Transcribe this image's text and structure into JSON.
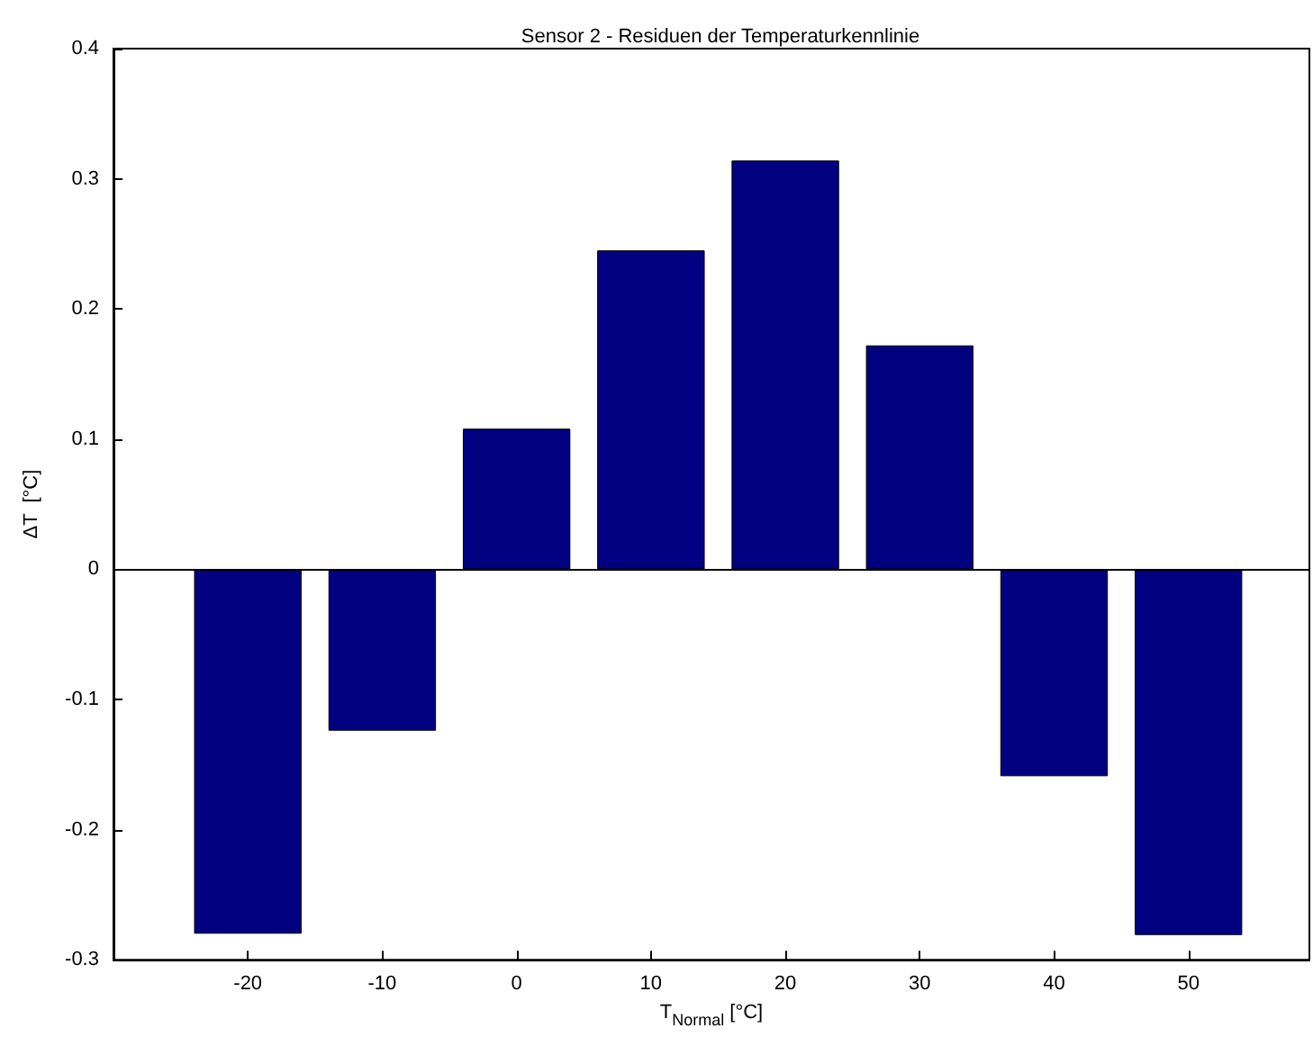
{
  "chart_data": {
    "type": "bar",
    "title": "Sensor 2 - Residuen der Temperaturkennlinie",
    "xlabel": "T$_{Normal}$ [°C]",
    "ylabel": "ΔT  [°C]",
    "x": [
      -20,
      -10,
      0,
      10,
      20,
      30,
      40,
      50
    ],
    "series": [
      {
        "color": "#000080",
        "values": [
          -0.28,
          -0.124,
          0.108,
          0.245,
          0.314,
          0.172,
          -0.159,
          -0.281
        ]
      }
    ],
    "xlim": [
      -30,
      59
    ],
    "xticks": [
      -20,
      -10,
      0,
      10,
      20,
      30,
      40,
      50
    ],
    "ylim": [
      -0.3,
      0.4
    ],
    "yticks": [
      -0.3,
      -0.2,
      -0.1,
      0,
      0.1,
      0.2,
      0.3,
      0.4
    ],
    "ref_lines": [
      {
        "axis": "y",
        "value": 0,
        "color": "#000000"
      }
    ],
    "grid": false
  }
}
